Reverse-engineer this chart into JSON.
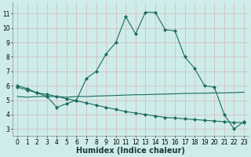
{
  "bg_color": "#ceecea",
  "line_color": "#1a6b60",
  "grid_color": "#d4b8b8",
  "xlabel": "Humidex (Indice chaleur)",
  "xlabel_fontsize": 7,
  "tick_fontsize": 5.5,
  "ylim": [
    2.5,
    11.8
  ],
  "xlim": [
    -0.5,
    23.5
  ],
  "yticks": [
    3,
    4,
    5,
    6,
    7,
    8,
    9,
    10,
    11
  ],
  "xticks": [
    0,
    1,
    2,
    3,
    4,
    5,
    6,
    7,
    8,
    9,
    10,
    11,
    12,
    13,
    14,
    15,
    16,
    17,
    18,
    19,
    20,
    21,
    22,
    23
  ],
  "curve1_x": [
    0,
    1,
    2,
    3,
    4,
    5,
    6,
    7,
    8,
    9,
    10,
    11,
    12,
    13,
    14,
    15,
    16,
    17,
    18,
    19,
    20,
    21,
    22,
    23
  ],
  "curve1_y": [
    6.0,
    5.8,
    5.5,
    5.25,
    4.5,
    4.75,
    5.0,
    6.5,
    7.0,
    8.2,
    9.0,
    10.8,
    9.6,
    11.1,
    11.1,
    9.9,
    9.8,
    8.0,
    7.2,
    6.0,
    5.9,
    4.0,
    3.0,
    3.5
  ],
  "curve2_x": [
    0,
    1,
    2,
    3,
    4,
    5,
    6,
    7,
    8,
    9,
    10,
    11,
    12,
    13,
    14,
    15,
    16,
    17,
    18,
    19,
    20,
    21,
    22,
    23
  ],
  "curve2_y": [
    5.25,
    5.2,
    5.25,
    5.25,
    5.25,
    5.2,
    5.25,
    5.25,
    5.28,
    5.3,
    5.32,
    5.35,
    5.37,
    5.38,
    5.4,
    5.42,
    5.44,
    5.46,
    5.47,
    5.48,
    5.5,
    5.5,
    5.52,
    5.55
  ],
  "curve3_x": [
    0,
    1,
    2,
    3,
    4,
    5,
    6,
    7,
    8,
    9,
    10,
    11,
    12,
    13,
    14,
    15,
    16,
    17,
    18,
    19,
    20,
    21,
    22,
    23
  ],
  "curve3_y": [
    5.9,
    5.7,
    5.5,
    5.4,
    5.25,
    5.1,
    4.95,
    4.8,
    4.65,
    4.5,
    4.35,
    4.2,
    4.1,
    4.0,
    3.9,
    3.8,
    3.75,
    3.7,
    3.65,
    3.6,
    3.55,
    3.5,
    3.45,
    3.42
  ]
}
